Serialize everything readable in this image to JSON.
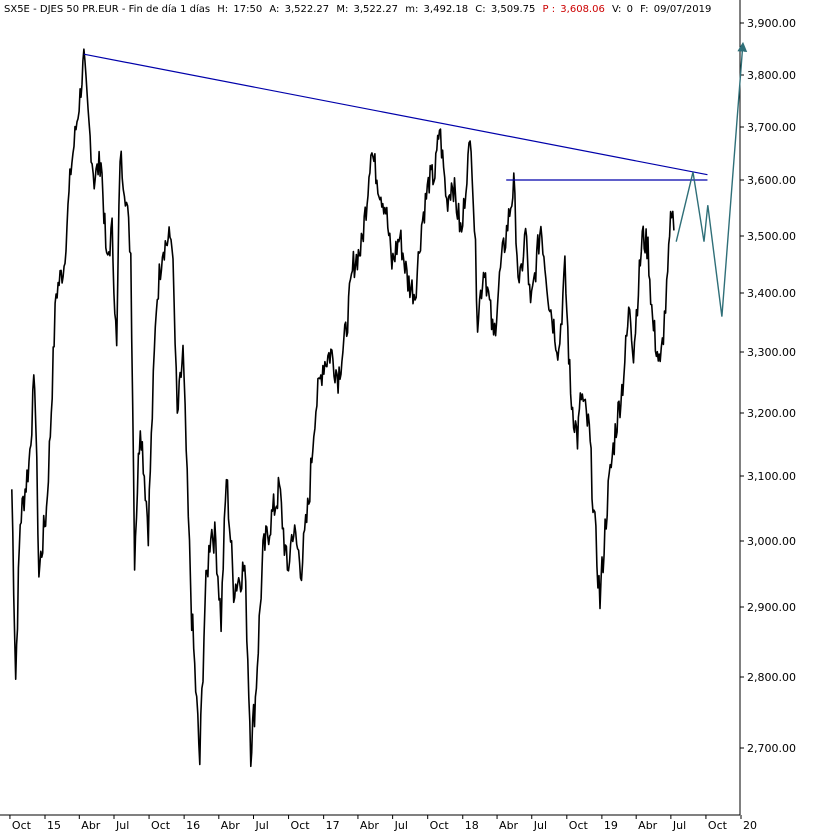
{
  "header": {
    "symbol": "SX5E",
    "name": "DJES 50 PR.EUR",
    "timeframe": "Fin de día 1 días",
    "h_label": "H:",
    "h_value": "17:50",
    "a_label": "A:",
    "a_value": "3,522.27",
    "m_label": "M:",
    "m_value": "3,522.27",
    "min_label": "m:",
    "min_value": "3,492.18",
    "c_label": "C:",
    "c_value": "3,509.75",
    "p_label": "P :",
    "p_value": "3,608.06",
    "v_label": "V:",
    "v_value": "0",
    "f_label": "F:",
    "f_value": "09/07/2019"
  },
  "colors": {
    "price": "#000000",
    "trendline": "#0000aa",
    "projection": "#2f6f78",
    "axis": "#000000",
    "header_red": "#cc0000"
  },
  "chart_data": {
    "type": "line",
    "title": "SX5E - DJES 50 PR.EUR",
    "xlabel": "",
    "ylabel": "",
    "ylim": [
      2640,
      3920
    ],
    "xlim": [
      "2014-10-01",
      "2020-01-20"
    ],
    "grid": false,
    "y_ticks": [
      {
        "value": 2700,
        "label": "2,700.00"
      },
      {
        "value": 2800,
        "label": "2,800.00"
      },
      {
        "value": 2900,
        "label": "2,900.00"
      },
      {
        "value": 3000,
        "label": "3,000.00"
      },
      {
        "value": 3100,
        "label": "3,100.00"
      },
      {
        "value": 3200,
        "label": "3,200.00"
      },
      {
        "value": 3300,
        "label": "3,300.00"
      },
      {
        "value": 3400,
        "label": "3,400.00"
      },
      {
        "value": 3500,
        "label": "3,500.00"
      },
      {
        "value": 3600,
        "label": "3,600.00"
      },
      {
        "value": 3700,
        "label": "3,700.00"
      },
      {
        "value": 3800,
        "label": "3,800.00"
      },
      {
        "value": 3900,
        "label": "3,900.00"
      }
    ],
    "x_ticks": [
      {
        "date": "2014-10-01",
        "label": "Oct"
      },
      {
        "date": "2015-01-01",
        "label": "15"
      },
      {
        "date": "2015-04-01",
        "label": "Abr"
      },
      {
        "date": "2015-07-01",
        "label": "Jul"
      },
      {
        "date": "2015-10-01",
        "label": "Oct"
      },
      {
        "date": "2016-01-01",
        "label": "16"
      },
      {
        "date": "2016-04-01",
        "label": "Abr"
      },
      {
        "date": "2016-07-01",
        "label": "Jul"
      },
      {
        "date": "2016-10-01",
        "label": "Oct"
      },
      {
        "date": "2017-01-01",
        "label": "17"
      },
      {
        "date": "2017-04-01",
        "label": "Abr"
      },
      {
        "date": "2017-07-01",
        "label": "Jul"
      },
      {
        "date": "2017-10-01",
        "label": "Oct"
      },
      {
        "date": "2018-01-01",
        "label": "18"
      },
      {
        "date": "2018-04-01",
        "label": "Abr"
      },
      {
        "date": "2018-07-01",
        "label": "Jul"
      },
      {
        "date": "2018-10-01",
        "label": "Oct"
      },
      {
        "date": "2019-01-01",
        "label": "19"
      },
      {
        "date": "2019-04-01",
        "label": "Abr"
      },
      {
        "date": "2019-07-01",
        "label": "Jul"
      },
      {
        "date": "2019-10-01",
        "label": "Oct"
      },
      {
        "date": "2020-01-01",
        "label": "20"
      }
    ],
    "series": [
      {
        "values": [
          {
            "x": "2014-10-06",
            "y": 3080
          },
          {
            "x": "2014-10-16",
            "y": 2800
          },
          {
            "x": "2014-10-28",
            "y": 3030
          },
          {
            "x": "2014-11-20",
            "y": 3120
          },
          {
            "x": "2014-12-05",
            "y": 3260
          },
          {
            "x": "2014-12-16",
            "y": 2950
          },
          {
            "x": "2015-01-05",
            "y": 3050
          },
          {
            "x": "2015-01-15",
            "y": 3170
          },
          {
            "x": "2015-01-30",
            "y": 3400
          },
          {
            "x": "2015-02-20",
            "y": 3450
          },
          {
            "x": "2015-03-10",
            "y": 3620
          },
          {
            "x": "2015-04-03",
            "y": 3760
          },
          {
            "x": "2015-04-13",
            "y": 3830
          },
          {
            "x": "2015-04-24",
            "y": 3720
          },
          {
            "x": "2015-05-10",
            "y": 3600
          },
          {
            "x": "2015-05-28",
            "y": 3640
          },
          {
            "x": "2015-06-12",
            "y": 3450
          },
          {
            "x": "2015-06-26",
            "y": 3510
          },
          {
            "x": "2015-07-08",
            "y": 3300
          },
          {
            "x": "2015-07-17",
            "y": 3650
          },
          {
            "x": "2015-07-31",
            "y": 3580
          },
          {
            "x": "2015-08-14",
            "y": 3470
          },
          {
            "x": "2015-08-24",
            "y": 2980
          },
          {
            "x": "2015-09-08",
            "y": 3190
          },
          {
            "x": "2015-09-29",
            "y": 3020
          },
          {
            "x": "2015-10-20",
            "y": 3380
          },
          {
            "x": "2015-11-05",
            "y": 3480
          },
          {
            "x": "2015-11-30",
            "y": 3500
          },
          {
            "x": "2015-12-14",
            "y": 3190
          },
          {
            "x": "2015-12-29",
            "y": 3300
          },
          {
            "x": "2016-01-12",
            "y": 3030
          },
          {
            "x": "2016-01-21",
            "y": 2890
          },
          {
            "x": "2016-02-11",
            "y": 2680
          },
          {
            "x": "2016-02-25",
            "y": 2910
          },
          {
            "x": "2016-03-11",
            "y": 3020
          },
          {
            "x": "2016-03-24",
            "y": 3000
          },
          {
            "x": "2016-04-07",
            "y": 2880
          },
          {
            "x": "2016-04-21",
            "y": 3100
          },
          {
            "x": "2016-05-10",
            "y": 2930
          },
          {
            "x": "2016-06-08",
            "y": 2960
          },
          {
            "x": "2016-06-24",
            "y": 2700
          },
          {
            "x": "2016-07-06",
            "y": 2770
          },
          {
            "x": "2016-07-26",
            "y": 2980
          },
          {
            "x": "2016-08-15",
            "y": 3030
          },
          {
            "x": "2016-09-07",
            "y": 3080
          },
          {
            "x": "2016-09-28",
            "y": 2950
          },
          {
            "x": "2016-10-12",
            "y": 3020
          },
          {
            "x": "2016-11-04",
            "y": 2960
          },
          {
            "x": "2016-11-23",
            "y": 3060
          },
          {
            "x": "2016-12-09",
            "y": 3200
          },
          {
            "x": "2016-12-30",
            "y": 3280
          },
          {
            "x": "2017-01-20",
            "y": 3300
          },
          {
            "x": "2017-02-08",
            "y": 3260
          },
          {
            "x": "2017-02-28",
            "y": 3330
          },
          {
            "x": "2017-03-20",
            "y": 3450
          },
          {
            "x": "2017-04-10",
            "y": 3480
          },
          {
            "x": "2017-04-25",
            "y": 3570
          },
          {
            "x": "2017-05-05",
            "y": 3660
          },
          {
            "x": "2017-05-26",
            "y": 3590
          },
          {
            "x": "2017-06-13",
            "y": 3550
          },
          {
            "x": "2017-06-29",
            "y": 3450
          },
          {
            "x": "2017-07-20",
            "y": 3500
          },
          {
            "x": "2017-08-10",
            "y": 3420
          },
          {
            "x": "2017-08-29",
            "y": 3400
          },
          {
            "x": "2017-09-15",
            "y": 3520
          },
          {
            "x": "2017-10-05",
            "y": 3600
          },
          {
            "x": "2017-10-20",
            "y": 3610
          },
          {
            "x": "2017-11-01",
            "y": 3700
          },
          {
            "x": "2017-11-20",
            "y": 3560
          },
          {
            "x": "2017-12-05",
            "y": 3600
          },
          {
            "x": "2017-12-29",
            "y": 3500
          },
          {
            "x": "2018-01-12",
            "y": 3620
          },
          {
            "x": "2018-01-23",
            "y": 3680
          },
          {
            "x": "2018-02-09",
            "y": 3360
          },
          {
            "x": "2018-02-27",
            "y": 3450
          },
          {
            "x": "2018-03-23",
            "y": 3320
          },
          {
            "x": "2018-04-10",
            "y": 3440
          },
          {
            "x": "2018-05-15",
            "y": 3590
          },
          {
            "x": "2018-05-29",
            "y": 3400
          },
          {
            "x": "2018-06-15",
            "y": 3510
          },
          {
            "x": "2018-06-28",
            "y": 3370
          },
          {
            "x": "2018-07-25",
            "y": 3520
          },
          {
            "x": "2018-08-15",
            "y": 3390
          },
          {
            "x": "2018-09-10",
            "y": 3300
          },
          {
            "x": "2018-09-26",
            "y": 3440
          },
          {
            "x": "2018-10-11",
            "y": 3230
          },
          {
            "x": "2018-10-29",
            "y": 3160
          },
          {
            "x": "2018-11-08",
            "y": 3230
          },
          {
            "x": "2018-11-29",
            "y": 3170
          },
          {
            "x": "2018-12-11",
            "y": 3040
          },
          {
            "x": "2018-12-27",
            "y": 2910
          },
          {
            "x": "2019-01-15",
            "y": 3060
          },
          {
            "x": "2019-02-05",
            "y": 3170
          },
          {
            "x": "2019-02-25",
            "y": 3250
          },
          {
            "x": "2019-03-15",
            "y": 3380
          },
          {
            "x": "2019-03-25",
            "y": 3300
          },
          {
            "x": "2019-04-17",
            "y": 3500
          },
          {
            "x": "2019-05-02",
            "y": 3480
          },
          {
            "x": "2019-05-14",
            "y": 3350
          },
          {
            "x": "2019-06-03",
            "y": 3270
          },
          {
            "x": "2019-06-20",
            "y": 3400
          },
          {
            "x": "2019-07-03",
            "y": 3550
          },
          {
            "x": "2019-07-09",
            "y": 3510
          }
        ]
      }
    ],
    "trendline_descending": [
      {
        "x": "2015-04-13",
        "y": 3840
      },
      {
        "x": "2019-10-05",
        "y": 3610
      }
    ],
    "horizontal_line": [
      {
        "x": "2018-04-25",
        "y": 3600
      },
      {
        "x": "2019-10-05",
        "y": 3600
      }
    ],
    "projection": [
      {
        "x": "2019-07-15",
        "y": 3490
      },
      {
        "x": "2019-08-28",
        "y": 3615
      },
      {
        "x": "2019-09-26",
        "y": 3490
      },
      {
        "x": "2019-10-06",
        "y": 3555
      },
      {
        "x": "2019-11-12",
        "y": 3360
      },
      {
        "x": "2020-01-06",
        "y": 3860
      }
    ]
  }
}
